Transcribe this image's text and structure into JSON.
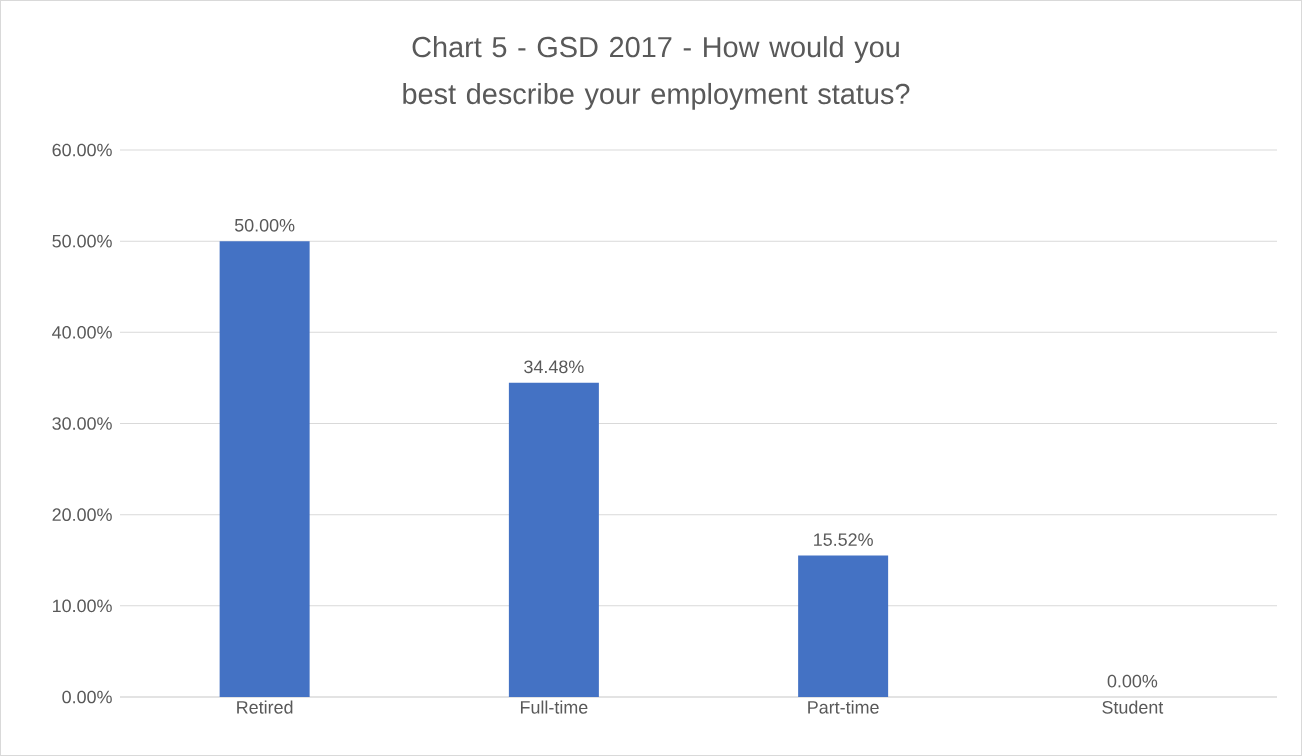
{
  "chart_data": {
    "type": "bar",
    "title": "Chart 5 - GSD 2017 - How would you best describe your employment status?",
    "categories": [
      "Retired",
      "Full-time",
      "Part-time",
      "Student"
    ],
    "values": [
      50,
      34.48,
      15.52,
      0
    ],
    "value_labels": [
      "50.00%",
      "34.48%",
      "15.52%",
      "0.00%"
    ],
    "color": "#4472c4",
    "ylim": [
      0,
      60
    ],
    "yticks": [
      {
        "value": 0,
        "label": "0.00%"
      },
      {
        "value": 10,
        "label": "10.00%"
      },
      {
        "value": 20,
        "label": "20.00%"
      },
      {
        "value": 30,
        "label": "30.00%"
      },
      {
        "value": 40,
        "label": "40.00%"
      },
      {
        "value": 50,
        "label": "50.00%"
      },
      {
        "value": 60,
        "label": "60.00%"
      }
    ],
    "grid": "y"
  }
}
